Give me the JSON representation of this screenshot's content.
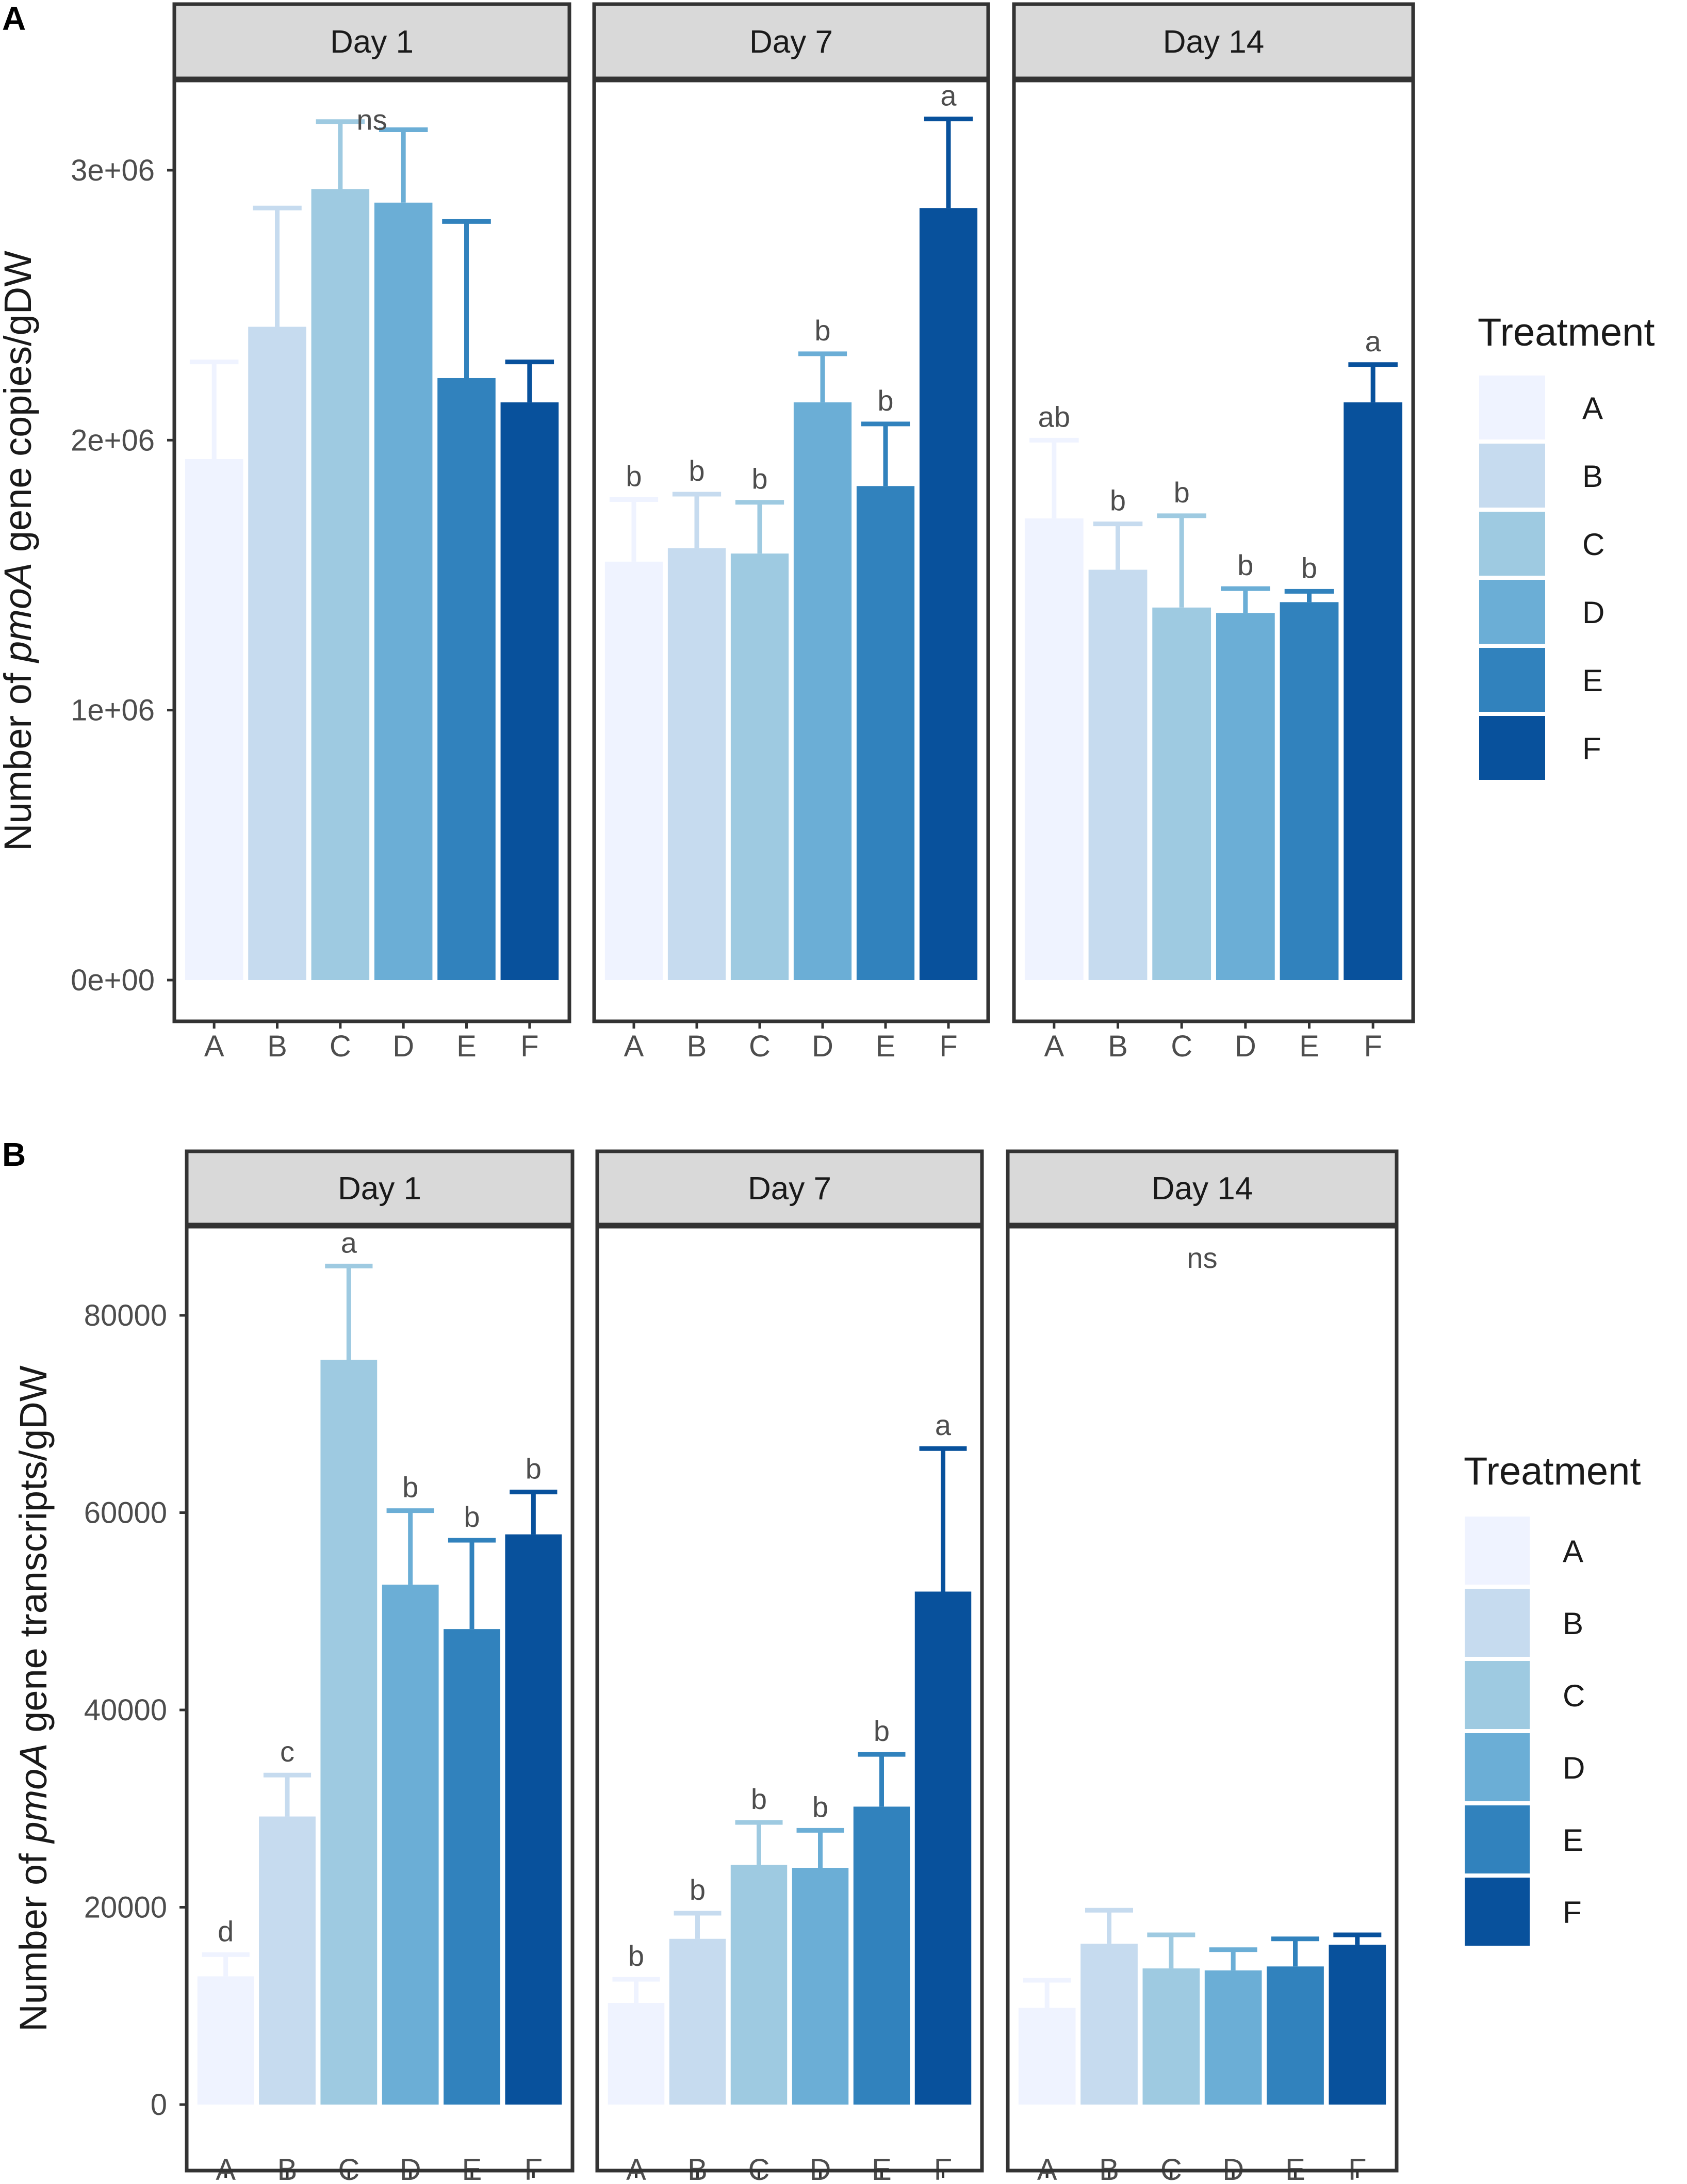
{
  "chart_data": [
    {
      "type": "bar",
      "panel_letter": "A",
      "ylabel_prefix": "Number of ",
      "ylabel_italic": "pmoA",
      "ylabel_suffix": " gene copies/gDW",
      "ylim": [
        0,
        3400000
      ],
      "yticks": [
        0,
        1000000,
        2000000,
        3000000
      ],
      "ytick_labels": [
        "0e+00",
        "1e+06",
        "2e+06",
        "3e+06"
      ],
      "categories": [
        "A",
        "B",
        "C",
        "D",
        "E",
        "F"
      ],
      "facets": [
        {
          "title": "Day 1",
          "values": [
            1930000,
            2420000,
            2930000,
            2880000,
            2230000,
            2140000
          ],
          "errors": [
            360000,
            440000,
            250000,
            270000,
            580000,
            150000
          ],
          "letters": [
            "",
            "",
            "",
            "",
            "",
            ""
          ],
          "panel_note": "ns"
        },
        {
          "title": "Day 7",
          "values": [
            1550000,
            1600000,
            1580000,
            2140000,
            1830000,
            2860000
          ],
          "errors": [
            230000,
            200000,
            190000,
            180000,
            230000,
            330000
          ],
          "letters": [
            "b",
            "b",
            "b",
            "b",
            "b",
            "a"
          ],
          "panel_note": ""
        },
        {
          "title": "Day 14",
          "values": [
            1710000,
            1520000,
            1380000,
            1360000,
            1400000,
            2140000
          ],
          "errors": [
            290000,
            170000,
            340000,
            90000,
            40000,
            140000
          ],
          "letters": [
            "ab",
            "b",
            "b",
            "b",
            "b",
            "a"
          ],
          "panel_note": ""
        }
      ],
      "legend": {
        "title": "Treatment",
        "entries": [
          "A",
          "B",
          "C",
          "D",
          "E",
          "F"
        ]
      }
    },
    {
      "type": "bar",
      "panel_letter": "B",
      "ylabel_prefix": "Number of ",
      "ylabel_italic": "pmoA",
      "ylabel_suffix": " gene transcripts/gDW",
      "ylim": [
        -4000,
        89500
      ],
      "yticks": [
        0,
        20000,
        40000,
        60000,
        80000
      ],
      "ytick_labels": [
        "0",
        "20000",
        "40000",
        "60000",
        "80000"
      ],
      "categories": [
        "A",
        "B",
        "C",
        "D",
        "E",
        "F"
      ],
      "facets": [
        {
          "title": "Day 1",
          "values": [
            13000,
            29200,
            75500,
            52700,
            48200,
            57800
          ],
          "errors": [
            2200,
            4200,
            9500,
            7500,
            9000,
            4300
          ],
          "letters": [
            "d",
            "c",
            "a",
            "b",
            "b",
            "b"
          ],
          "panel_note": ""
        },
        {
          "title": "Day 7",
          "values": [
            10300,
            16800,
            24300,
            24000,
            30200,
            52000
          ],
          "errors": [
            2400,
            2600,
            4300,
            3800,
            5300,
            14500
          ],
          "letters": [
            "b",
            "b",
            "b",
            "b",
            "b",
            "a"
          ],
          "panel_note": ""
        },
        {
          "title": "Day 14",
          "values": [
            9800,
            16300,
            13800,
            13600,
            14000,
            16200
          ],
          "errors": [
            2800,
            3400,
            3400,
            2100,
            2800,
            1000
          ],
          "letters": [
            "",
            "",
            "",
            "",
            "",
            ""
          ],
          "panel_note": "ns"
        }
      ],
      "legend": {
        "title": "Treatment",
        "entries": [
          "A",
          "B",
          "C",
          "D",
          "E",
          "F"
        ]
      }
    }
  ],
  "palette": [
    "#eff3ff",
    "#c6dbef",
    "#9ecae1",
    "#6baed6",
    "#3182bd",
    "#08519c"
  ],
  "colors": {
    "strip_fill": "#d9d9d9",
    "panel_border": "#333333",
    "tick_color": "#333333"
  }
}
